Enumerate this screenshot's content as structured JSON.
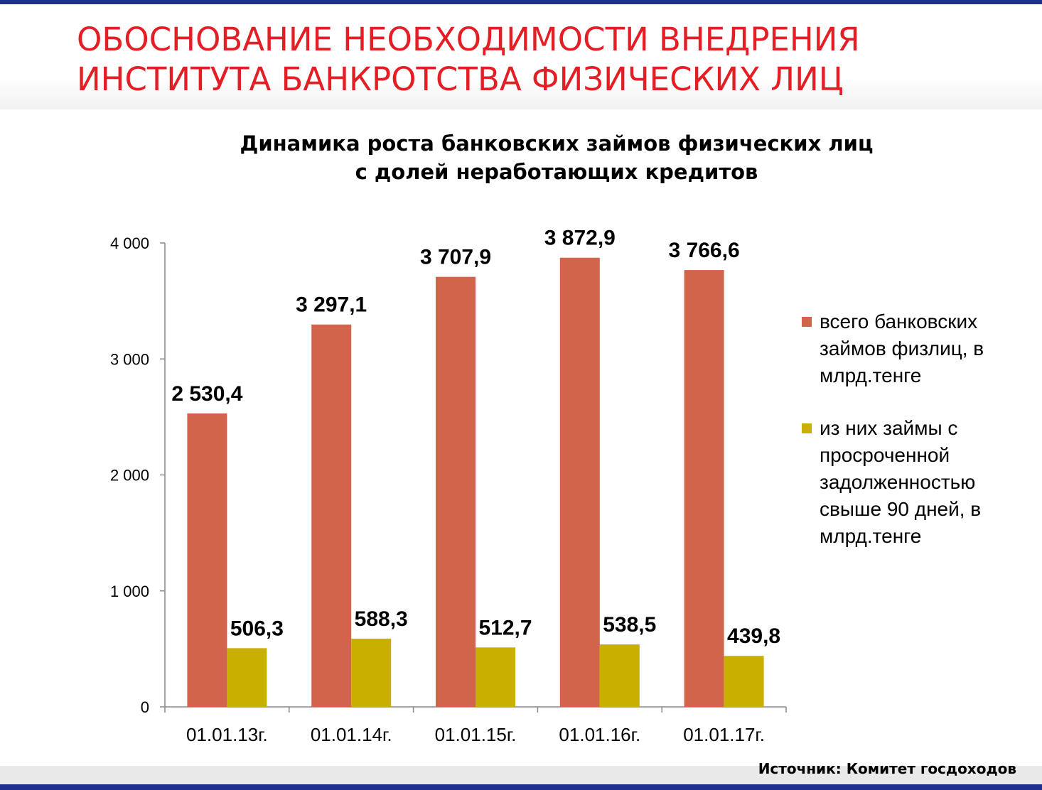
{
  "slide": {
    "title_lines": [
      "ОБОСНОВАНИЕ НЕОБХОДИМОСТИ ВНЕДРЕНИЯ",
      "ИНСТИТУТА БАНКРОТСТВА ФИЗИЧЕСКИХ ЛИЦ"
    ],
    "title_color": "#e31e24",
    "accent_color": "#1f2f8f",
    "source": "Источник: Комитет госдоходов"
  },
  "chart_data": {
    "type": "bar",
    "title_lines": [
      "Динамика роста банковских займов физических лиц",
      "с долей неработающих кредитов"
    ],
    "categories": [
      "01.01.13г.",
      "01.01.14г.",
      "01.01.15г.",
      "01.01.16г.",
      "01.01.17г."
    ],
    "series": [
      {
        "name_lines": [
          "всего банковских",
          "займов физлиц, в",
          "млрд.тенге"
        ],
        "color": "#d2644b",
        "values": [
          2530.4,
          3297.1,
          3707.9,
          3872.9,
          3766.6
        ],
        "labels": [
          "2 530,4",
          "3 297,1",
          "3 707,9",
          "3 872,9",
          "3 766,6"
        ]
      },
      {
        "name_lines": [
          "из них займы с",
          "просроченной",
          "задолженностью",
          "свыше 90 дней, в",
          "млрд.тенге"
        ],
        "color": "#c9b000",
        "values": [
          506.3,
          588.3,
          512.7,
          538.5,
          439.8
        ],
        "labels": [
          "506,3",
          "588,3",
          "512,7",
          "538,5",
          "439,8"
        ]
      }
    ],
    "ylim": [
      0,
      4000
    ],
    "yticks": [
      0,
      1000,
      2000,
      3000,
      4000
    ],
    "ytick_labels": [
      "0",
      "1 000",
      "2 000",
      "3 000",
      "4 000"
    ],
    "grid": false,
    "legend_position": "right"
  }
}
